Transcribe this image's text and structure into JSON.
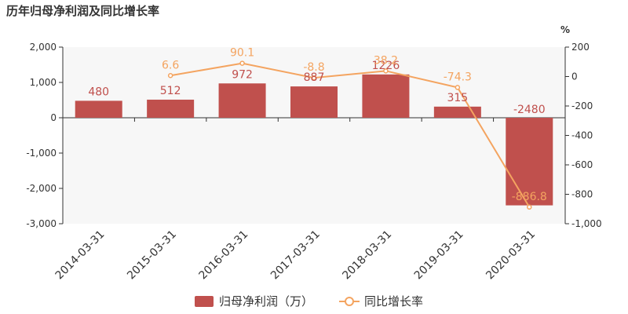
{
  "chart_data": {
    "type": "bar",
    "title": "历年归母净利润及同比增长率",
    "categories": [
      "2014-03-31",
      "2015-03-31",
      "2016-03-31",
      "2017-03-31",
      "2018-03-31",
      "2019-03-31",
      "2020-03-31"
    ],
    "series": [
      {
        "name": "归母净利润（万）",
        "type": "bar",
        "axis": "left",
        "values": [
          480,
          512,
          972,
          887,
          1226,
          315,
          -2480
        ],
        "labels": [
          "480",
          "512",
          "972",
          "887",
          "1226",
          "315",
          "-2480"
        ],
        "color": "#c0504d"
      },
      {
        "name": "同比增长率",
        "type": "line",
        "axis": "right",
        "values": [
          null,
          6.6,
          90.1,
          -8.8,
          38.2,
          -74.3,
          -886.8
        ],
        "labels": [
          "",
          "6.6",
          "90.1",
          "-8.8",
          "38.2",
          "-74.3",
          "-886.8"
        ],
        "color": "#f4a460"
      }
    ],
    "y_left": {
      "lim": [
        -3000,
        2000
      ],
      "ticks": [
        2000,
        1000,
        0,
        -1000,
        -2000,
        -3000
      ],
      "tick_labels": [
        "2,000",
        "1,000",
        "0",
        "-1,000",
        "-2,000",
        "-3,000"
      ]
    },
    "y_right": {
      "unit": "%",
      "lim": [
        -1000,
        200
      ],
      "ticks": [
        200,
        0,
        -200,
        -400,
        -600,
        -800,
        -1000
      ],
      "tick_labels": [
        "200",
        "0",
        "-200",
        "-400",
        "-600",
        "-800",
        "-1,000"
      ]
    },
    "grid": false,
    "legend": "bottom-center"
  }
}
